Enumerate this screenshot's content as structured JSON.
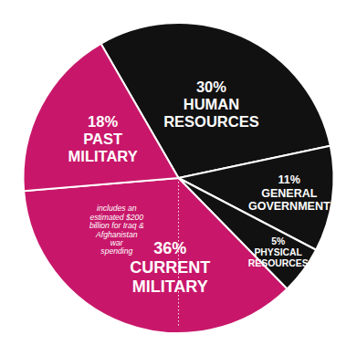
{
  "chart_data": {
    "type": "pie",
    "categories": [
      "HUMAN\nRESOURCES",
      "GENERAL\nGOVERNMENT",
      "PHYSICAL\nRESOURCES",
      "CURRENT\nMILITARY",
      "PAST\nMILITARY"
    ],
    "values": [
      30,
      11,
      5,
      36,
      18
    ],
    "value_labels": [
      "30%",
      "11%",
      "5%",
      "36%",
      "18%"
    ],
    "colors": [
      "#111111",
      "#111111",
      "#111111",
      "#c8176a",
      "#c8176a"
    ],
    "data_labels": true,
    "annotation": "includes an\nestimated $200\nbillion for Iraq &\nAfghanistan\nwar\nspending"
  }
}
